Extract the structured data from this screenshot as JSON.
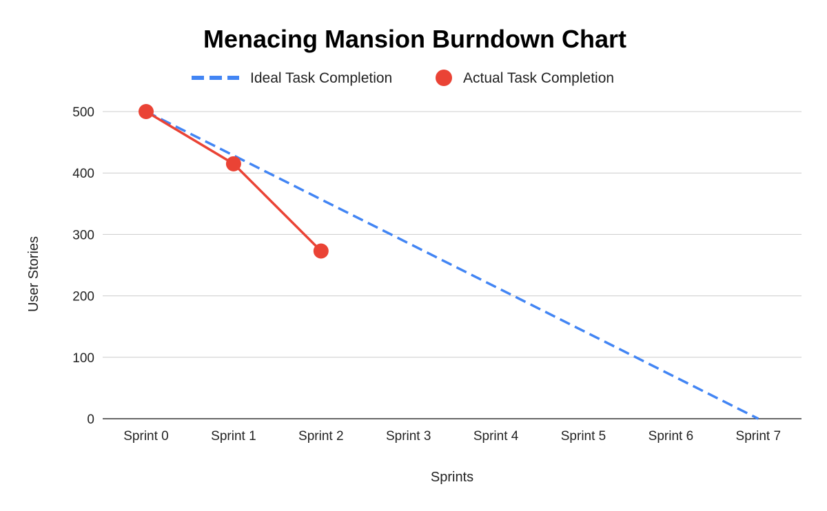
{
  "chart_data": {
    "type": "line",
    "title": "Menacing Mansion Burndown Chart",
    "xlabel": "Sprints",
    "ylabel": "User Stories",
    "categories": [
      "Sprint 0",
      "Sprint 1",
      "Sprint 2",
      "Sprint 3",
      "Sprint 4",
      "Sprint 5",
      "Sprint 6",
      "Sprint 7"
    ],
    "ylim": [
      0,
      500
    ],
    "yticks": [
      0,
      100,
      200,
      300,
      400,
      500
    ],
    "grid": true,
    "legend_position": "top",
    "series": [
      {
        "name": "Ideal Task Completion",
        "values": [
          500,
          428.6,
          357.1,
          285.7,
          214.3,
          142.9,
          71.4,
          0
        ],
        "color": "#4285f4",
        "style": "dashed"
      },
      {
        "name": "Actual Task Completion",
        "values": [
          500,
          415,
          273,
          null,
          null,
          null,
          null,
          null
        ],
        "color": "#ea4335",
        "style": "line-with-markers"
      }
    ]
  }
}
